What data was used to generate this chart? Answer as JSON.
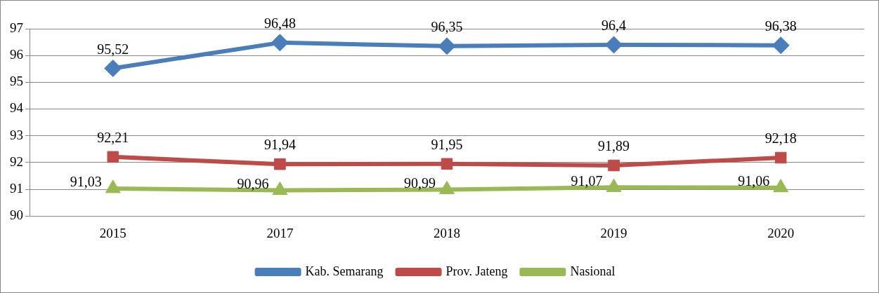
{
  "chart_data": {
    "type": "line",
    "categories": [
      "2015",
      "2017",
      "2018",
      "2019",
      "2020"
    ],
    "series": [
      {
        "name": "Kab. Semarang",
        "color": "#4a7ebb",
        "marker": "diamond",
        "values": [
          95.52,
          96.48,
          96.35,
          96.4,
          96.38
        ],
        "value_labels": [
          "95,52",
          "96,48",
          "96,35",
          "96,4",
          "96,38"
        ]
      },
      {
        "name": "Prov. Jateng",
        "color": "#be4b48",
        "marker": "square",
        "values": [
          92.21,
          91.94,
          91.95,
          91.89,
          92.18
        ],
        "value_labels": [
          "92,21",
          "91,94",
          "91,95",
          "91,89",
          "92,18"
        ]
      },
      {
        "name": "Nasional",
        "color": "#98b954",
        "marker": "triangle",
        "values": [
          91.03,
          90.96,
          90.99,
          91.07,
          91.06
        ],
        "value_labels": [
          "91,03",
          "90,96",
          "90,99",
          "91,07",
          "91,06"
        ]
      }
    ],
    "ylim": [
      90,
      97
    ],
    "yticks": [
      90,
      91,
      92,
      93,
      94,
      95,
      96,
      97
    ],
    "grid": "y",
    "legend": "bottom"
  }
}
